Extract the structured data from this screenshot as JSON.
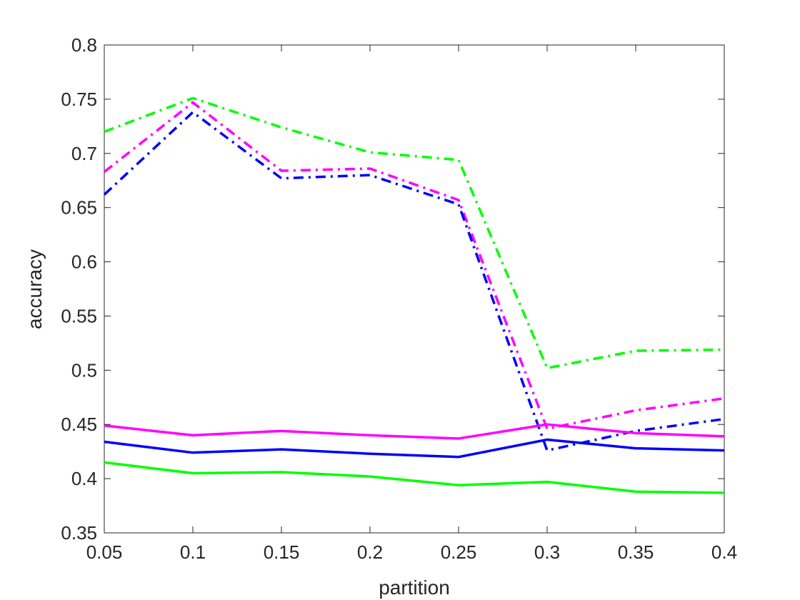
{
  "chart_data": {
    "type": "line",
    "title": "",
    "xlabel": "partition",
    "ylabel": "accuracy",
    "xlim": [
      0.05,
      0.4
    ],
    "ylim": [
      0.35,
      0.8
    ],
    "grid": false,
    "xticks": [
      "0.05",
      "0.1",
      "0.15",
      "0.2",
      "0.25",
      "0.3",
      "0.35",
      "0.4"
    ],
    "yticks": [
      "0.35",
      "0.4",
      "0.45",
      "0.5",
      "0.55",
      "0.6",
      "0.65",
      "0.7",
      "0.75",
      "0.8"
    ],
    "x": [
      0.05,
      0.1,
      0.15,
      0.2,
      0.25,
      0.3,
      0.35,
      0.4
    ],
    "series": [
      {
        "color": "#00ff00",
        "style": "dashdot",
        "values": [
          0.72,
          0.751,
          0.724,
          0.701,
          0.694,
          0.502,
          0.518,
          0.519
        ]
      },
      {
        "color": "#ff00ff",
        "style": "dashdot",
        "values": [
          0.683,
          0.747,
          0.684,
          0.686,
          0.657,
          0.446,
          0.463,
          0.474
        ]
      },
      {
        "color": "#0000ff",
        "style": "dashdot",
        "values": [
          0.662,
          0.738,
          0.677,
          0.68,
          0.653,
          0.426,
          0.444,
          0.455
        ]
      },
      {
        "color": "#ff00ff",
        "style": "solid",
        "values": [
          0.449,
          0.44,
          0.444,
          0.44,
          0.437,
          0.45,
          0.442,
          0.439
        ]
      },
      {
        "color": "#0000ff",
        "style": "solid",
        "values": [
          0.434,
          0.424,
          0.427,
          0.423,
          0.42,
          0.436,
          0.428,
          0.426
        ]
      },
      {
        "color": "#00ff00",
        "style": "solid",
        "values": [
          0.415,
          0.405,
          0.406,
          0.402,
          0.394,
          0.397,
          0.388,
          0.387
        ]
      }
    ]
  }
}
